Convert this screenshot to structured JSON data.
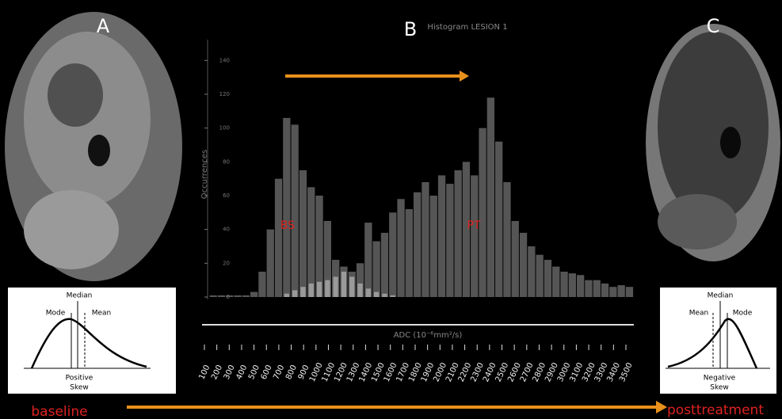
{
  "panels": {
    "a": "A",
    "b": "B",
    "c": "C"
  },
  "histogram": {
    "title": "Histogram LESION 1",
    "x_label": "ADC (10⁻⁶mm²/s)",
    "y_label": "Occurrences",
    "annotations": [
      "BS",
      "PT"
    ],
    "ylim": [
      0,
      150
    ],
    "yticks": [
      0,
      20,
      40,
      60,
      80,
      100,
      120,
      140
    ],
    "series": [
      {
        "color": "#555555",
        "values": [
          1,
          1,
          1,
          1,
          1,
          3,
          15,
          40,
          70,
          106,
          102,
          75,
          65,
          60,
          45,
          22,
          18,
          15,
          20,
          44,
          33,
          38,
          50,
          58,
          52,
          62,
          68,
          60,
          72,
          67,
          75,
          80,
          72,
          100,
          118,
          92,
          68,
          45,
          38,
          30,
          25,
          22,
          18,
          15,
          14,
          13,
          10,
          10,
          8,
          6,
          7,
          6
        ]
      },
      {
        "color": "#9a9a9a",
        "values": [
          0,
          0,
          0,
          0,
          0,
          0,
          0,
          0,
          0,
          2,
          4,
          6,
          8,
          9,
          10,
          12,
          15,
          12,
          8,
          5,
          3,
          2,
          1,
          0,
          0,
          0,
          0,
          0,
          0,
          0,
          0,
          0,
          0,
          0,
          0,
          0,
          0,
          0,
          0,
          0,
          0,
          0,
          0,
          0,
          0,
          0,
          0,
          0,
          0,
          0,
          0,
          0
        ]
      }
    ],
    "x_ticks": [
      100,
      200,
      300,
      400,
      500,
      600,
      700,
      800,
      900,
      1000,
      1100,
      1200,
      1300,
      1400,
      1500,
      1600,
      1700,
      1800,
      1900,
      2000,
      2100,
      2200,
      2300,
      2400,
      2500,
      2600,
      2700,
      2800,
      2900,
      3000,
      3100,
      3200,
      3300,
      3400,
      3500
    ]
  },
  "skew_left": {
    "mode": "Mode",
    "median": "Median",
    "mean": "Mean",
    "caption": [
      "Positive",
      "Skew"
    ]
  },
  "skew_right": {
    "mode": "Mode",
    "median": "Median",
    "mean": "Mean",
    "caption": [
      "Negative",
      "Skew"
    ]
  },
  "timeline": {
    "start": "baseline",
    "end": "posttreatment"
  }
}
